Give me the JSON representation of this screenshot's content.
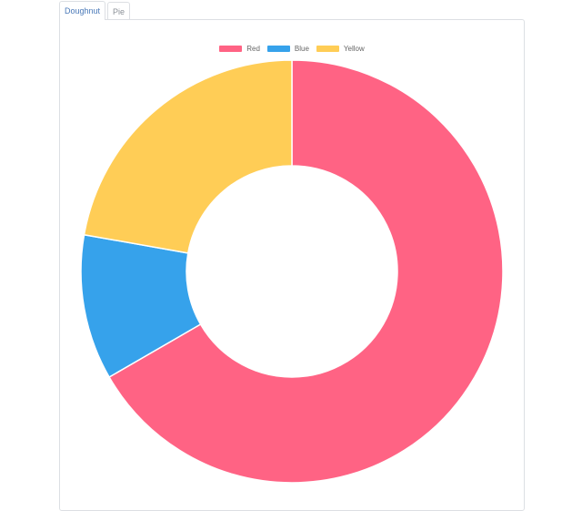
{
  "tabs": [
    {
      "label": "Doughnut",
      "active": true
    },
    {
      "label": "Pie",
      "active": false
    }
  ],
  "chart_data": {
    "type": "doughnut",
    "labels": [
      "Red",
      "Blue",
      "Yellow"
    ],
    "values": [
      300,
      50,
      100
    ],
    "colors": [
      "#ff6384",
      "#36a2eb",
      "#ffcd56"
    ],
    "legend": "top",
    "start_angle": "top",
    "cutout_fraction": 0.5
  }
}
